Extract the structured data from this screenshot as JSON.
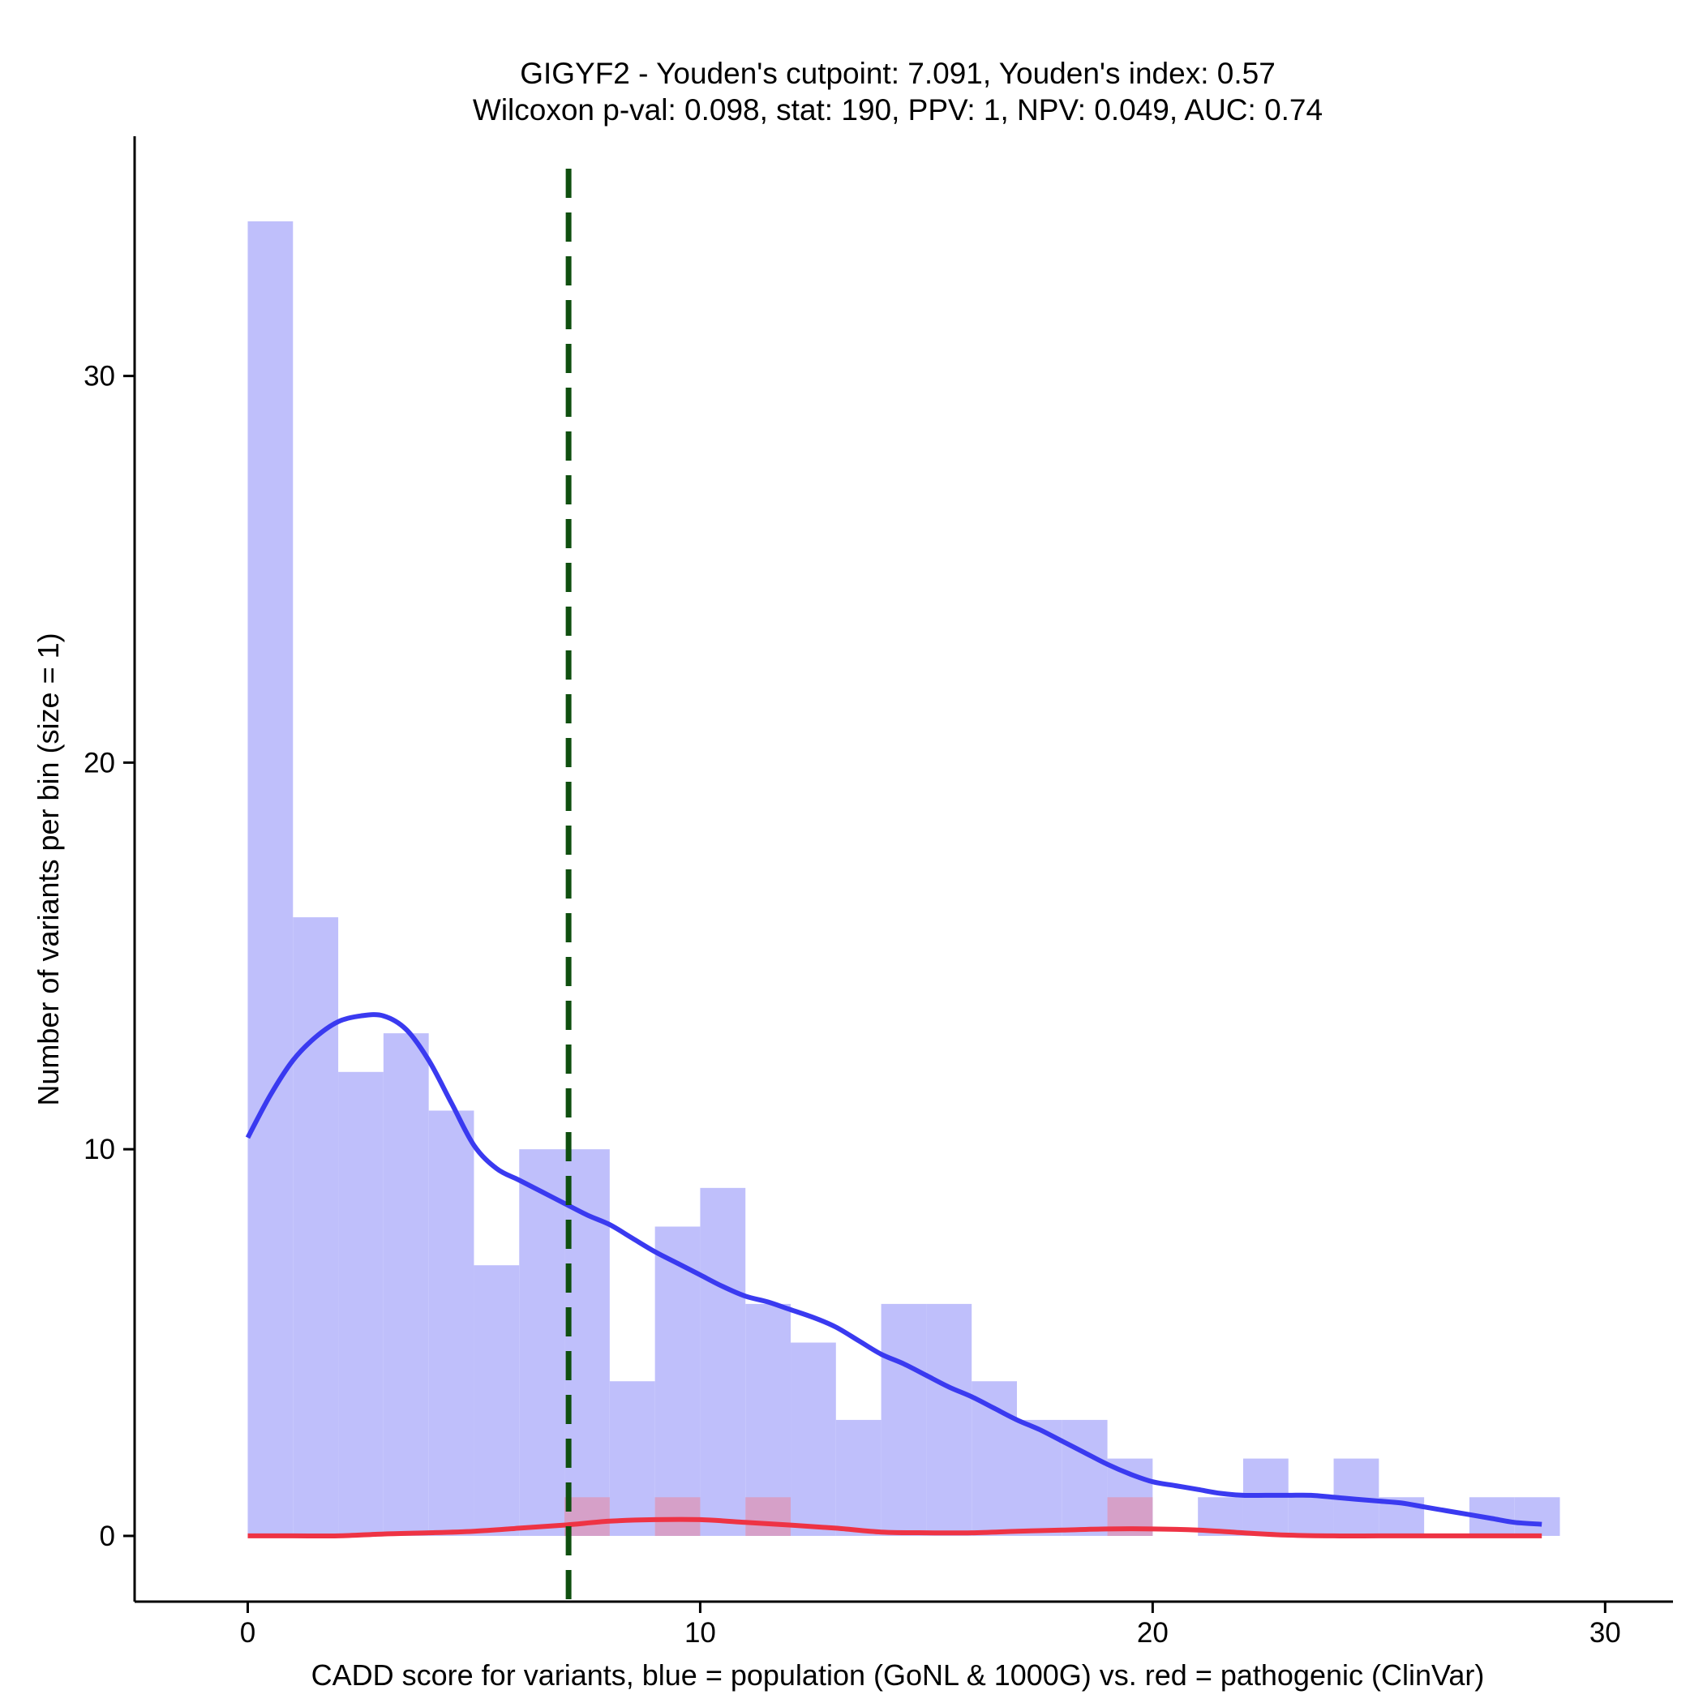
{
  "chart_data": {
    "type": "bar",
    "title": "GIGYF2 - Youden's cutpoint: 7.091, Youden's index: 0.57",
    "subtitle": "Wilcoxon p-val: 0.098, stat: 190, PPV: 1, NPV: 0.049, AUC: 0.74",
    "xlabel": "CADD score for variants, blue = population (GoNL & 1000G) vs. red = pathogenic (ClinVar)",
    "ylabel": "Number of variants per bin (size = 1)",
    "xlim": [
      -2.5,
      31.5
    ],
    "ylim": [
      -1.7,
      36.2
    ],
    "x_ticks": [
      0,
      10,
      20,
      30
    ],
    "y_ticks": [
      0,
      10,
      20,
      30
    ],
    "cutpoint": 7.091,
    "colors": {
      "population_bar": "#bfbffb",
      "pathogenic_bar": "#d6a0c8",
      "population_line": "#3a3af0",
      "pathogenic_line": "#ee3344",
      "cutpoint_line": "#0f4f0f"
    },
    "series": [
      {
        "name": "population (GoNL & 1000G)",
        "bins": [
          {
            "x0": 0,
            "x1": 1,
            "count": 34
          },
          {
            "x0": 1,
            "x1": 2,
            "count": 16
          },
          {
            "x0": 2,
            "x1": 3,
            "count": 12
          },
          {
            "x0": 3,
            "x1": 4,
            "count": 13
          },
          {
            "x0": 4,
            "x1": 5,
            "count": 11
          },
          {
            "x0": 5,
            "x1": 6,
            "count": 7
          },
          {
            "x0": 6,
            "x1": 7,
            "count": 10
          },
          {
            "x0": 7,
            "x1": 8,
            "count": 10
          },
          {
            "x0": 8,
            "x1": 9,
            "count": 4
          },
          {
            "x0": 9,
            "x1": 10,
            "count": 8
          },
          {
            "x0": 10,
            "x1": 11,
            "count": 9
          },
          {
            "x0": 11,
            "x1": 12,
            "count": 6
          },
          {
            "x0": 12,
            "x1": 13,
            "count": 5
          },
          {
            "x0": 13,
            "x1": 14,
            "count": 3
          },
          {
            "x0": 14,
            "x1": 15,
            "count": 6
          },
          {
            "x0": 15,
            "x1": 16,
            "count": 6
          },
          {
            "x0": 16,
            "x1": 17,
            "count": 4
          },
          {
            "x0": 17,
            "x1": 18,
            "count": 3
          },
          {
            "x0": 18,
            "x1": 19,
            "count": 3
          },
          {
            "x0": 19,
            "x1": 20,
            "count": 2
          },
          {
            "x0": 20,
            "x1": 21,
            "count": 0
          },
          {
            "x0": 21,
            "x1": 22,
            "count": 1
          },
          {
            "x0": 22,
            "x1": 23,
            "count": 2
          },
          {
            "x0": 23,
            "x1": 24,
            "count": 1
          },
          {
            "x0": 24,
            "x1": 25,
            "count": 2
          },
          {
            "x0": 25,
            "x1": 26,
            "count": 1
          },
          {
            "x0": 26,
            "x1": 27,
            "count": 0
          },
          {
            "x0": 27,
            "x1": 28,
            "count": 1
          },
          {
            "x0": 28,
            "x1": 29,
            "count": 1
          }
        ],
        "density": {
          "x": [
            0,
            0.5,
            1,
            1.5,
            2,
            2.5,
            3,
            3.5,
            4,
            4.5,
            5,
            5.5,
            6,
            6.5,
            7,
            7.5,
            8,
            8.5,
            9,
            9.5,
            10,
            10.5,
            11,
            11.5,
            12,
            12.5,
            13,
            13.5,
            14,
            14.5,
            15,
            15.5,
            16,
            16.5,
            17,
            17.5,
            18,
            18.5,
            19,
            19.5,
            20,
            20.5,
            21,
            21.5,
            22,
            22.5,
            23,
            23.5,
            24,
            24.5,
            25,
            25.5,
            26,
            26.5,
            27,
            27.5,
            28,
            28.6
          ],
          "y": [
            10.3,
            11.4,
            12.3,
            12.9,
            13.3,
            13.45,
            13.45,
            13.1,
            12.3,
            11.2,
            10.1,
            9.5,
            9.2,
            8.9,
            8.6,
            8.3,
            8.05,
            7.7,
            7.35,
            7.05,
            6.75,
            6.45,
            6.2,
            6.05,
            5.85,
            5.65,
            5.4,
            5.05,
            4.7,
            4.45,
            4.15,
            3.85,
            3.6,
            3.3,
            3.0,
            2.75,
            2.45,
            2.15,
            1.85,
            1.6,
            1.4,
            1.3,
            1.2,
            1.1,
            1.05,
            1.05,
            1.05,
            1.05,
            1.0,
            0.95,
            0.9,
            0.85,
            0.75,
            0.65,
            0.55,
            0.45,
            0.35,
            0.3
          ]
        }
      },
      {
        "name": "pathogenic (ClinVar)",
        "bins": [
          {
            "x0": 7,
            "x1": 8,
            "count": 1
          },
          {
            "x0": 9,
            "x1": 10,
            "count": 1
          },
          {
            "x0": 11,
            "x1": 12,
            "count": 1
          },
          {
            "x0": 19,
            "x1": 20,
            "count": 1
          }
        ],
        "density": {
          "x": [
            0,
            1,
            2,
            3,
            4,
            5,
            6,
            7,
            8,
            9,
            10,
            11,
            12,
            13,
            14,
            15,
            16,
            17,
            18,
            19,
            20,
            21,
            22,
            23,
            24,
            25,
            26,
            27,
            28,
            28.6
          ],
          "y": [
            0,
            0,
            0,
            0.05,
            0.08,
            0.12,
            0.2,
            0.28,
            0.38,
            0.42,
            0.42,
            0.35,
            0.28,
            0.2,
            0.1,
            0.08,
            0.08,
            0.12,
            0.15,
            0.18,
            0.18,
            0.15,
            0.08,
            0.02,
            0,
            0,
            0,
            0,
            0,
            0
          ]
        }
      }
    ]
  }
}
